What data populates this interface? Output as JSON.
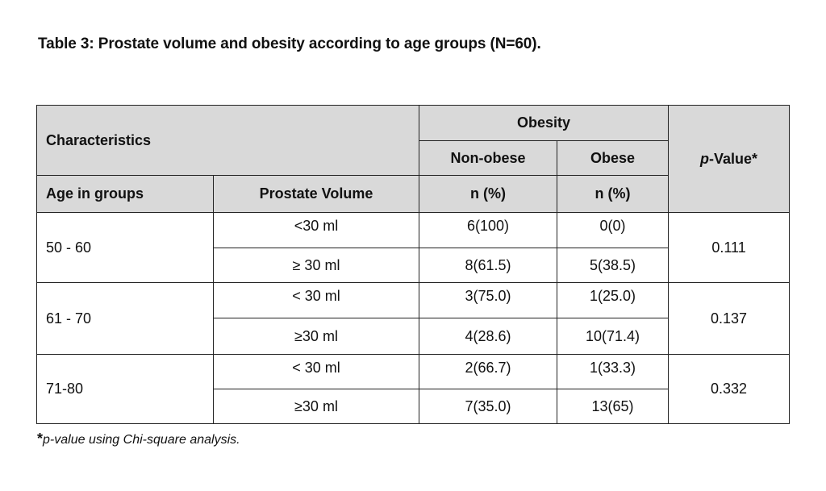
{
  "title": "Table 3: Prostate volume and obesity according to age groups (N=60).",
  "header": {
    "characteristics": "Characteristics",
    "obesity": "Obesity",
    "non_obese": "Non-obese",
    "obese": "Obese",
    "p_value_italic": "p",
    "p_value_rest": "-Value*",
    "age_in_groups": "Age in groups",
    "prostate_volume": "Prostate Volume",
    "n_pct_non_obese": "n (%)",
    "n_pct_obese": "n (%)"
  },
  "groups": [
    {
      "age": "50 - 60",
      "p_value": "0.111",
      "rows": [
        {
          "volume": "<30 ml",
          "non_obese": "6(100)",
          "obese": "0(0)"
        },
        {
          "volume": "≥ 30 ml",
          "non_obese": "8(61.5)",
          "obese": "5(38.5)"
        }
      ]
    },
    {
      "age": "61 - 70",
      "p_value": "0.137",
      "rows": [
        {
          "volume": "< 30 ml",
          "non_obese": "3(75.0)",
          "obese": "1(25.0)"
        },
        {
          "volume": "≥30 ml",
          "non_obese": "4(28.6)",
          "obese": "10(71.4)"
        }
      ]
    },
    {
      "age": "71-80",
      "p_value": "0.332",
      "rows": [
        {
          "volume": "< 30 ml",
          "non_obese": "2(66.7)",
          "obese": "1(33.3)"
        },
        {
          "volume": "≥30 ml",
          "non_obese": "7(35.0)",
          "obese": "13(65)"
        }
      ]
    }
  ],
  "footnote": {
    "star": "*",
    "text": "p-value using Chi-square analysis."
  }
}
